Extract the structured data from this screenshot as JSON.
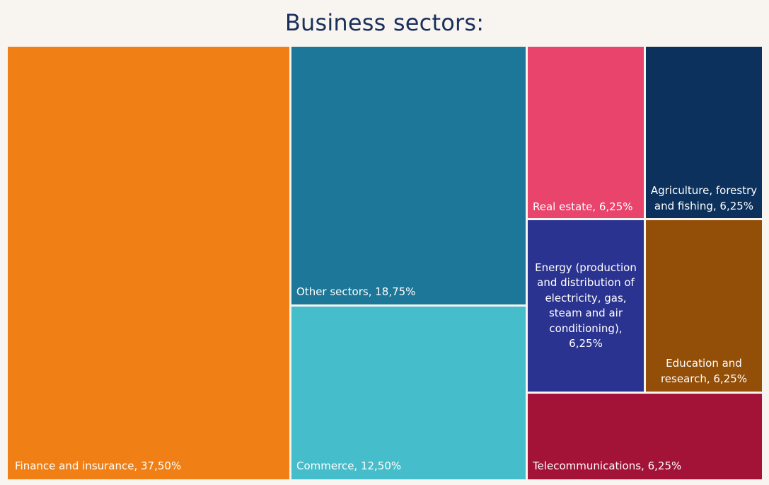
{
  "chart_data": {
    "type": "treemap",
    "title": "Business sectors:",
    "colors": {
      "background": "#f8f5f0",
      "title": "#1a2f5c",
      "label": "#ffffff"
    },
    "items": [
      {
        "name": "Finance and insurance",
        "value": 37.5,
        "label": "Finance and insurance, 37,50%",
        "color": "#f08015"
      },
      {
        "name": "Other sectors",
        "value": 18.75,
        "label": "Other sectors, 18,75%",
        "color": "#1c7798"
      },
      {
        "name": "Commerce",
        "value": 12.5,
        "label": "Commerce, 12,50%",
        "color": "#46bdca"
      },
      {
        "name": "Real estate",
        "value": 6.25,
        "label": "Real estate, 6,25%",
        "color": "#e8446c"
      },
      {
        "name": "Agriculture, forestry and fishing",
        "value": 6.25,
        "label": "Agriculture, forestry and fishing, 6,25%",
        "color": "#0b315c"
      },
      {
        "name": "Energy (production and distribution of electricity, gas, steam and air conditioning)",
        "value": 6.25,
        "label": "Energy (production and distribution of electricity, gas, steam and air conditioning), 6,25%",
        "color": "#2b3390"
      },
      {
        "name": "Education and research",
        "value": 6.25,
        "label": "Education and research, 6,25%",
        "color": "#934e08"
      },
      {
        "name": "Telecommunications",
        "value": 6.25,
        "label": "Telecommunications, 6,25%",
        "color": "#a31337"
      }
    ]
  }
}
